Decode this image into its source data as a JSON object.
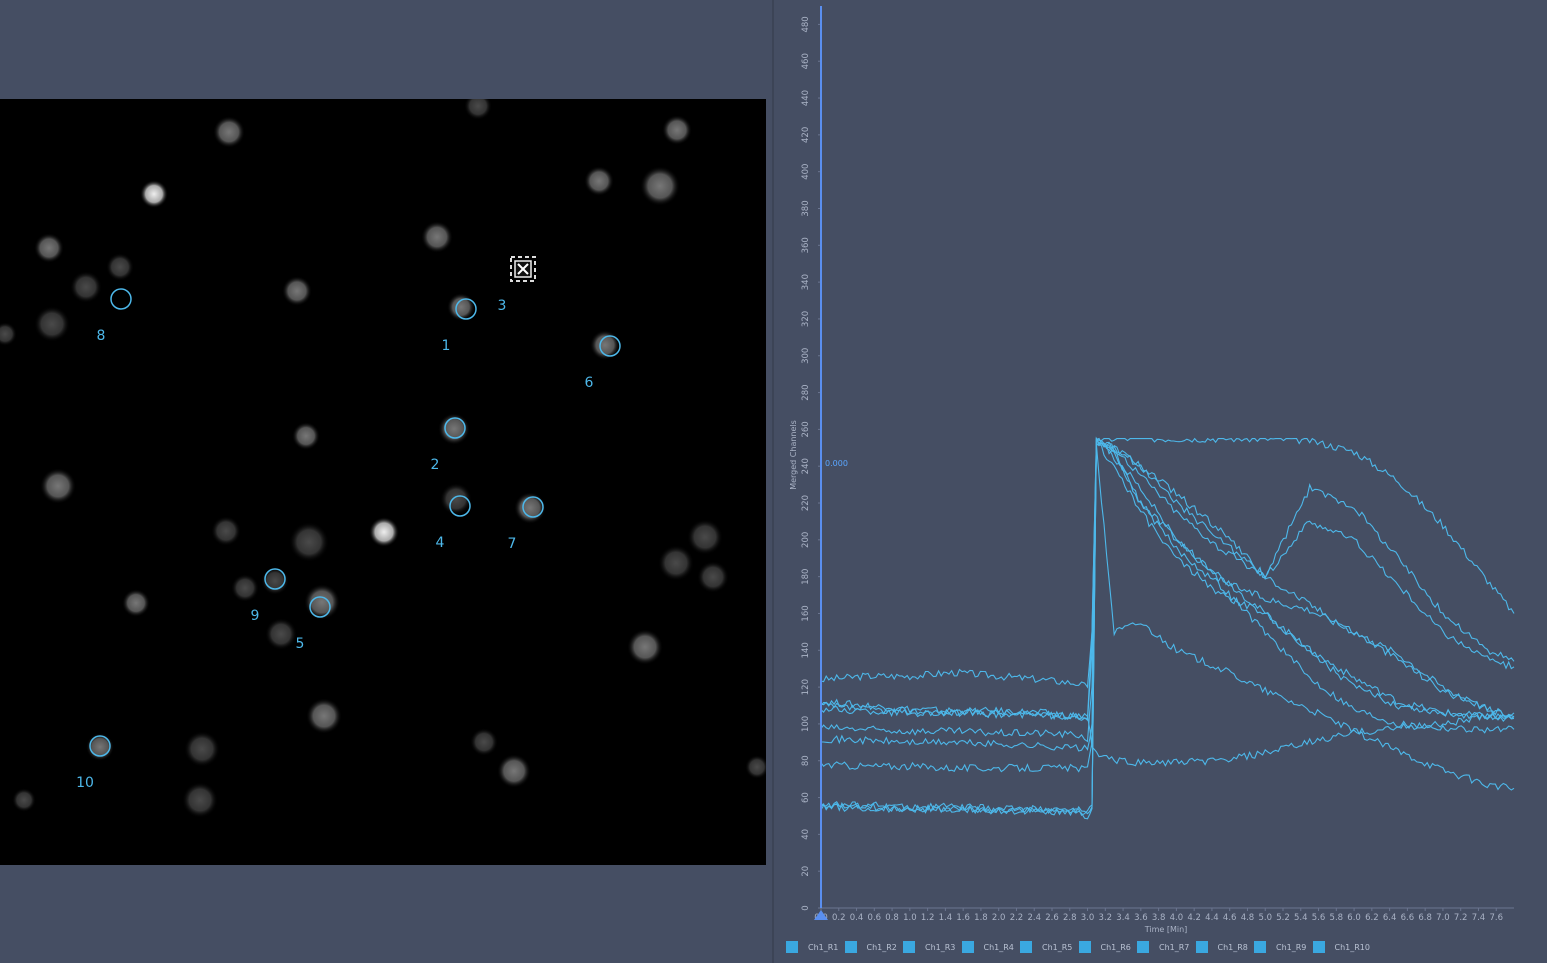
{
  "colors": {
    "background": "#454e63",
    "trace": "#4db8ea",
    "roi": "#4db8ea",
    "axis": "#5a8ff0",
    "tick_label": "#aab3c6"
  },
  "image": {
    "rois": [
      {
        "id": "1",
        "label": "1"
      },
      {
        "id": "2",
        "label": "2"
      },
      {
        "id": "3",
        "label": "3"
      },
      {
        "id": "4",
        "label": "4"
      },
      {
        "id": "5",
        "label": "5"
      },
      {
        "id": "6",
        "label": "6"
      },
      {
        "id": "7",
        "label": "7"
      },
      {
        "id": "8",
        "label": "8"
      },
      {
        "id": "9",
        "label": "9"
      },
      {
        "id": "10",
        "label": "10"
      }
    ],
    "cursor_icon": "crosshair-target-icon"
  },
  "chart": {
    "ylabel": "Merged Channels",
    "xlabel": "Time [Min]",
    "cursor_value": "0.000",
    "legend": [
      "Ch1_R1",
      "Ch1_R2",
      "Ch1_R3",
      "Ch1_R4",
      "Ch1_R5",
      "Ch1_R6",
      "Ch1_R7",
      "Ch1_R8",
      "Ch1_R9",
      "Ch1_R10"
    ]
  },
  "chart_data": {
    "type": "line",
    "xlabel": "Time [Min]",
    "ylabel": "Merged Channels",
    "xlim": [
      0,
      7.8
    ],
    "ylim": [
      0,
      490
    ],
    "x_ticks": [
      "0.0",
      "0.2",
      "0.4",
      "0.6",
      "0.8",
      "1.0",
      "1.2",
      "1.4",
      "1.6",
      "1.8",
      "2.0",
      "2.2",
      "2.4",
      "2.6",
      "2.8",
      "3.0",
      "3.2",
      "3.4",
      "3.6",
      "3.8",
      "4.0",
      "4.2",
      "4.4",
      "4.6",
      "4.8",
      "5.0",
      "5.2",
      "5.4",
      "5.6",
      "5.8",
      "6.0",
      "6.2",
      "6.4",
      "6.6",
      "6.8",
      "7.0",
      "7.2",
      "7.4",
      "7.6"
    ],
    "y_ticks": [
      0,
      20,
      40,
      60,
      80,
      100,
      120,
      140,
      160,
      180,
      200,
      220,
      240,
      260,
      280,
      300,
      320,
      340,
      360,
      380,
      400,
      420,
      440,
      460,
      480
    ],
    "legend_position": "bottom",
    "series": [
      {
        "name": "Ch1_R1",
        "x": [
          0,
          0.5,
          1,
          1.5,
          2,
          2.5,
          2.9,
          3.0,
          3.05,
          3.1,
          3.3,
          3.6,
          4.0,
          4.5,
          5.0,
          5.5,
          6.0,
          6.5,
          7.0,
          7.5,
          7.8
        ],
        "values": [
          124,
          126,
          126,
          128,
          126,
          124,
          122,
          120,
          150,
          255,
          255,
          255,
          255,
          255,
          255,
          254,
          248,
          232,
          208,
          178,
          160
        ]
      },
      {
        "name": "Ch1_R2",
        "x": [
          0,
          0.5,
          1,
          1.5,
          2,
          2.5,
          2.9,
          3.0,
          3.05,
          3.1,
          3.3,
          3.6,
          4.0,
          4.5,
          5.0,
          5.5,
          6.0,
          6.5,
          7.0,
          7.5,
          7.8
        ],
        "values": [
          112,
          110,
          108,
          107,
          107,
          106,
          104,
          102,
          140,
          252,
          248,
          220,
          200,
          180,
          160,
          140,
          125,
          112,
          106,
          104,
          103
        ]
      },
      {
        "name": "Ch1_R3",
        "x": [
          0,
          0.5,
          1,
          1.5,
          2,
          2.5,
          2.9,
          3.0,
          3.05,
          3.1,
          3.3,
          3.6,
          4.0,
          4.5,
          5.0,
          5.5,
          6.0,
          6.5,
          7.0,
          7.5,
          7.8
        ],
        "values": [
          110,
          108,
          107,
          106,
          106,
          105,
          104,
          103,
          150,
          254,
          250,
          235,
          215,
          195,
          180,
          165,
          150,
          135,
          118,
          108,
          104
        ]
      },
      {
        "name": "Ch1_R4",
        "x": [
          0,
          0.5,
          1,
          1.5,
          2,
          2.5,
          2.9,
          3.0,
          3.05,
          3.1,
          3.3,
          3.6,
          4.0,
          4.5,
          5.0,
          5.5,
          6.0,
          6.5,
          7.0,
          7.5,
          7.8
        ],
        "values": [
          98,
          97,
          96,
          96,
          95,
          95,
          94,
          92,
          120,
          250,
          150,
          155,
          140,
          130,
          118,
          108,
          96,
          85,
          75,
          67,
          65
        ]
      },
      {
        "name": "Ch1_R5",
        "x": [
          0,
          0.5,
          1,
          1.5,
          2,
          2.5,
          2.9,
          3.0,
          3.05,
          3.1,
          3.3,
          3.6,
          4.0,
          4.5,
          5.0,
          5.5,
          6.0,
          6.5,
          7.0,
          7.5,
          7.8
        ],
        "values": [
          92,
          91,
          90,
          90,
          89,
          88,
          87,
          86,
          100,
          255,
          245,
          220,
          195,
          175,
          150,
          125,
          108,
          100,
          98,
          97,
          97
        ]
      },
      {
        "name": "Ch1_R6",
        "x": [
          0,
          0.5,
          1,
          1.5,
          2,
          2.5,
          2.9,
          3.0,
          3.05,
          3.1,
          3.3,
          3.6,
          4.0,
          4.5,
          5.0,
          5.5,
          6.0,
          6.5,
          7.0,
          7.5,
          7.8
        ],
        "values": [
          78,
          77,
          77,
          76,
          76,
          76,
          76,
          75,
          90,
          254,
          246,
          228,
          200,
          178,
          168,
          162,
          150,
          138,
          120,
          108,
          104
        ]
      },
      {
        "name": "Ch1_R7",
        "x": [
          0,
          0.5,
          1,
          1.5,
          2,
          2.5,
          2.9,
          3.0,
          3.05,
          3.1,
          3.3,
          3.6,
          4.0,
          4.5,
          5.0,
          5.5,
          6.0,
          6.5,
          7.0,
          7.5,
          7.8
        ],
        "values": [
          56,
          56,
          55,
          55,
          54,
          54,
          53,
          52,
          55,
          254,
          250,
          240,
          225,
          205,
          180,
          210,
          200,
          175,
          150,
          135,
          131
        ]
      },
      {
        "name": "Ch1_R8",
        "x": [
          0,
          0.5,
          1,
          1.5,
          2,
          2.5,
          2.9,
          3.0,
          3.05,
          3.1,
          3.3,
          3.6,
          4.0,
          4.5,
          5.0,
          5.5,
          6.0,
          6.5,
          7.0,
          7.5,
          7.8
        ],
        "values": [
          55,
          55,
          54,
          54,
          53,
          53,
          52,
          52,
          56,
          255,
          250,
          240,
          220,
          200,
          180,
          228,
          218,
          190,
          160,
          140,
          134
        ]
      },
      {
        "name": "Ch1_R9",
        "x": [
          0,
          0.5,
          1,
          1.5,
          2,
          2.5,
          2.9,
          3.0,
          3.05,
          3.1,
          3.3,
          3.6,
          4.0,
          4.5,
          5.0,
          5.5,
          6.0,
          6.5,
          7.0,
          7.5,
          7.8
        ],
        "values": [
          55,
          54,
          54,
          53,
          53,
          52,
          51,
          50,
          54,
          253,
          240,
          215,
          190,
          170,
          160,
          140,
          120,
          110,
          106,
          104,
          103
        ]
      },
      {
        "name": "Ch1_R10",
        "x": [
          0,
          0.5,
          1,
          1.5,
          2,
          2.5,
          2.9,
          3.0,
          3.05,
          3.1,
          3.3,
          3.6,
          4.0,
          4.5,
          5.0,
          5.5,
          6.0,
          6.5,
          7.0,
          7.5,
          7.8
        ],
        "values": [
          108,
          107,
          106,
          106,
          105,
          105,
          104,
          104,
          88,
          84,
          80,
          79,
          79,
          80,
          84,
          90,
          95,
          98,
          100,
          104,
          106
        ]
      }
    ]
  }
}
